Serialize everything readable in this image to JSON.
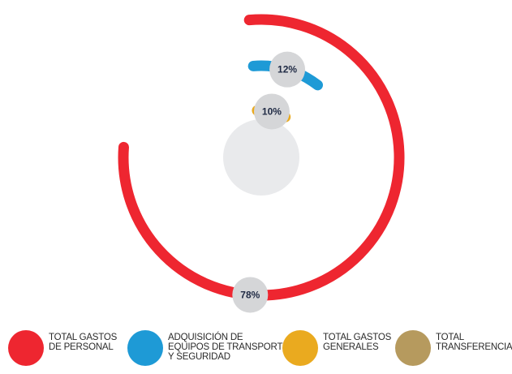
{
  "chart_data": {
    "type": "radial-bar",
    "series": [
      {
        "label": "TOTAL GASTOS DE PERSONAL",
        "value": 78,
        "value_label": "78%",
        "color": "#ee2630"
      },
      {
        "label": "ADQUISICIÓN DE EQUIPOS DE TRANSPORTE Y SEGURIDAD",
        "value": 12,
        "value_label": "12%",
        "color": "#1e9ad6"
      },
      {
        "label": "TOTAL GASTOS GENERALES",
        "value": 10,
        "value_label": "10%",
        "color": "#eaaa1f"
      },
      {
        "label": "TOTAL TRANSFERENCIAS",
        "value": 0,
        "value_label": "",
        "color": "#b69a5e"
      }
    ],
    "center_color": "#e9eaec",
    "badge_color": "#d5d6d8"
  },
  "legend": [
    {
      "lines": [
        "TOTAL GASTOS",
        "DE PERSONAL"
      ],
      "color": "#ee2630"
    },
    {
      "lines": [
        "ADQUISICIÓN DE",
        "EQUIPOS DE TRANSPORTE",
        "Y SEGURIDAD"
      ],
      "color": "#1e9ad6"
    },
    {
      "lines": [
        "TOTAL GASTOS",
        "GENERALES"
      ],
      "color": "#eaaa1f"
    },
    {
      "lines": [
        "TOTAL",
        "TRANSFERENCIAS"
      ],
      "color": "#b69a5e"
    }
  ]
}
